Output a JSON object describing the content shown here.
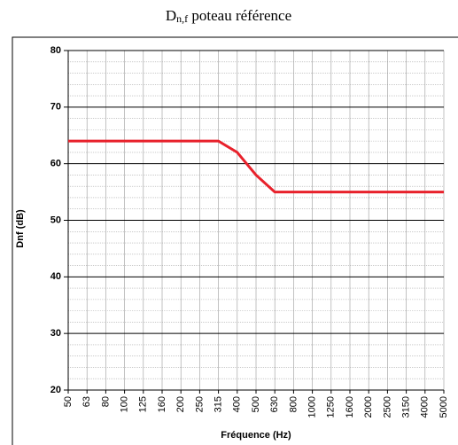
{
  "chart_data": {
    "type": "line",
    "title": {
      "main": "D",
      "sub": "n,f",
      "rest": " poteau référence"
    },
    "x_label": "Fréquence (Hz)",
    "y_label": "Dnf (dB)",
    "categories": [
      "50",
      "63",
      "80",
      "100",
      "125",
      "160",
      "200",
      "250",
      "315",
      "400",
      "500",
      "630",
      "800",
      "1000",
      "1250",
      "1600",
      "2000",
      "2500",
      "3150",
      "4000",
      "5000"
    ],
    "series": [
      {
        "name": "Dnf",
        "color": "#e8212b",
        "values": [
          64,
          64,
          64,
          64,
          64,
          64,
          64,
          64,
          64,
          62,
          58,
          55,
          55,
          55,
          55,
          55,
          55,
          55,
          55,
          55,
          55
        ]
      }
    ],
    "ylim": [
      20,
      80
    ],
    "yticks": [
      20,
      30,
      40,
      50,
      60,
      70,
      80
    ],
    "grid": true,
    "minor_grid": true
  }
}
